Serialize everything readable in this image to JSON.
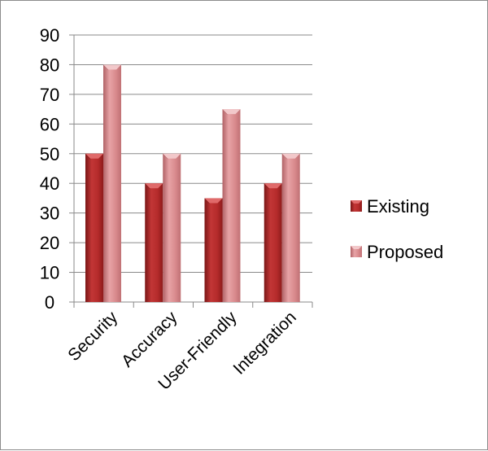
{
  "chart_data": {
    "type": "bar",
    "categories": [
      "Security",
      "Accuracy",
      "User-Friendly",
      "Integration"
    ],
    "series": [
      {
        "name": "Existing",
        "values": [
          50,
          40,
          35,
          40
        ]
      },
      {
        "name": "Proposed",
        "values": [
          80,
          50,
          65,
          50
        ]
      }
    ],
    "ylim": [
      0,
      90
    ],
    "yticks": [
      0,
      10,
      20,
      30,
      40,
      50,
      60,
      70,
      80,
      90
    ],
    "grid": true,
    "legend_position": "right",
    "colors": {
      "Existing": {
        "front": "#b52b2b",
        "light": "#d14c4c",
        "dark": "#7a1616",
        "top": "#e06a6a"
      },
      "Proposed": {
        "front": "#d98a8d",
        "light": "#ecb3b5",
        "dark": "#b06266",
        "top": "#f2c8ca"
      }
    }
  }
}
